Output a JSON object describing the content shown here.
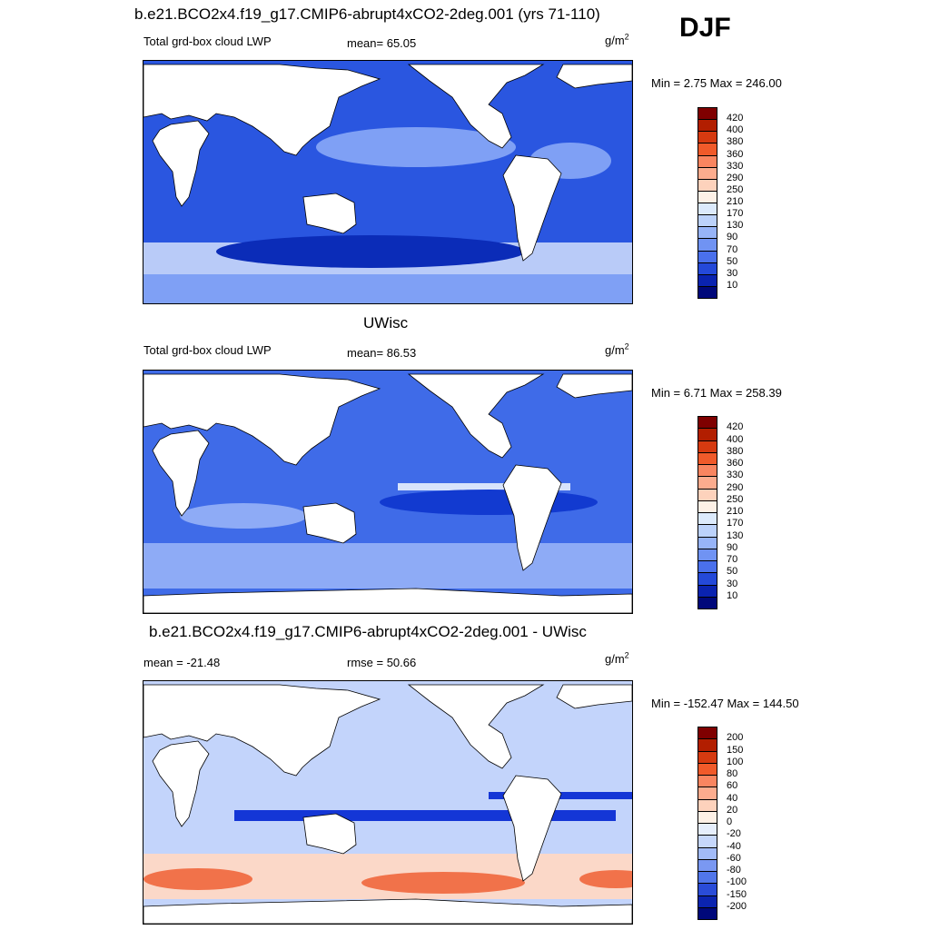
{
  "season": "DJF",
  "unit_label": "g/m",
  "unit_exp": "2",
  "panels": [
    {
      "id": "model",
      "title": "b.e21.BCO2x4.f19_g17.CMIP6-abrupt4xCO2-2deg.001 (yrs 71-110)",
      "left_label": "Total grd-box cloud LWP",
      "stat_label": "mean=  65.05",
      "minmax": "Min =   2.75 Max = 246.00",
      "colors": {
        "ocean": "#2a56e0",
        "band_a": "#0b2cb8",
        "band_b": "#7fa0f5",
        "band_c": "#b9cbf8"
      },
      "colorbar": {
        "labels": [
          "420",
          "400",
          "380",
          "360",
          "330",
          "290",
          "250",
          "210",
          "170",
          "130",
          "90",
          "70",
          "50",
          "30",
          "10"
        ],
        "colors": [
          "#7f0000",
          "#b21e00",
          "#d63a10",
          "#f05a2a",
          "#f98560",
          "#fcac8e",
          "#fdd2bc",
          "#fdf0e6",
          "#dceafc",
          "#bcd2fb",
          "#97b4f8",
          "#7093f3",
          "#4a70ec",
          "#2449d9",
          "#0a23b0",
          "#00087a"
        ]
      }
    },
    {
      "id": "obs",
      "title": "UWisc",
      "left_label": "Total grd-box cloud LWP",
      "stat_label": "mean=  86.53",
      "minmax": "Min =   6.71 Max = 258.39",
      "colors": {
        "ocean": "#3f6be8",
        "band_a": "#123ad0",
        "band_b": "#8eabf6",
        "band_c": "#d8e4fb"
      },
      "colorbar": {
        "labels": [
          "420",
          "400",
          "380",
          "360",
          "330",
          "290",
          "250",
          "210",
          "170",
          "130",
          "90",
          "70",
          "50",
          "30",
          "10"
        ],
        "colors": [
          "#7f0000",
          "#b21e00",
          "#d63a10",
          "#f05a2a",
          "#f98560",
          "#fcac8e",
          "#fdd2bc",
          "#fdf0e6",
          "#dceafc",
          "#bcd2fb",
          "#97b4f8",
          "#7093f3",
          "#4a70ec",
          "#2449d9",
          "#0a23b0",
          "#00087a"
        ]
      }
    },
    {
      "id": "diff",
      "title": "b.e21.BCO2x4.f19_g17.CMIP6-abrupt4xCO2-2deg.001 - UWisc",
      "left_label": "mean = -21.48",
      "stat_label": "rmse =  50.66",
      "minmax": "Min = -152.47 Max = 144.50",
      "colors": {
        "ocean": "#c3d4fb",
        "band_a": "#1436d6",
        "band_b": "#f1724a",
        "band_c": "#fbd8c8"
      },
      "colorbar": {
        "labels": [
          "200",
          "150",
          "100",
          "80",
          "60",
          "40",
          "20",
          "0",
          "-20",
          "-40",
          "-60",
          "-80",
          "-100",
          "-150",
          "-200"
        ],
        "colors": [
          "#7f0000",
          "#b21e00",
          "#d63a10",
          "#f05a2a",
          "#f98560",
          "#fcac8e",
          "#fdd2bc",
          "#fdf0e6",
          "#e6eefc",
          "#c6d7fb",
          "#a2bbf8",
          "#7a98f2",
          "#5176ea",
          "#2a4cd8",
          "#0b24b0",
          "#00087a"
        ]
      }
    }
  ]
}
